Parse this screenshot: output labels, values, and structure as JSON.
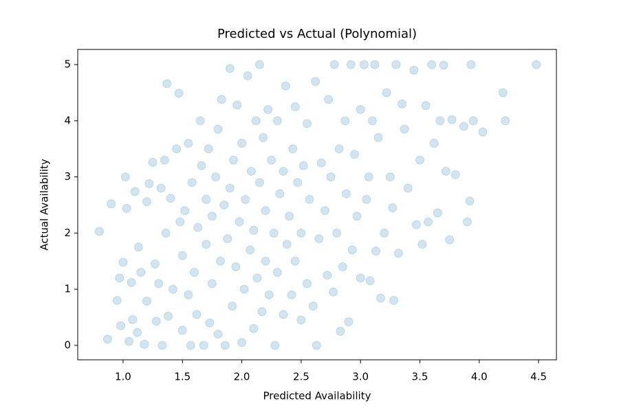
{
  "chart_data": {
    "type": "scatter",
    "title": "Predicted vs Actual (Polynomial)",
    "x_label": "Predicted Availability",
    "y_label": "Actual Availability",
    "color": "#1f77b4",
    "alpha": 0.2,
    "xlim": [
      0.618,
      4.65
    ],
    "ylim": [
      -0.257,
      5.27
    ],
    "xticks": [
      {
        "value": 1.0,
        "label": "1.0"
      },
      {
        "value": 1.5,
        "label": "1.5"
      },
      {
        "value": 2.0,
        "label": "2.0"
      },
      {
        "value": 2.5,
        "label": "2.5"
      },
      {
        "value": 3.0,
        "label": "3.0"
      },
      {
        "value": 3.5,
        "label": "3.5"
      },
      {
        "value": 4.0,
        "label": "4.0"
      },
      {
        "value": 4.5,
        "label": "4.5"
      }
    ],
    "yticks": [
      0,
      1,
      2,
      3,
      4,
      5
    ],
    "x": [
      0.8,
      0.87,
      0.9,
      0.95,
      0.97,
      0.98,
      1.0,
      1.02,
      1.03,
      1.05,
      1.07,
      1.08,
      1.1,
      1.12,
      1.13,
      1.15,
      1.18,
      1.2,
      1.2,
      1.22,
      1.25,
      1.27,
      1.28,
      1.3,
      1.32,
      1.33,
      1.35,
      1.36,
      1.37,
      1.38,
      1.4,
      1.42,
      1.45,
      1.47,
      1.48,
      1.5,
      1.5,
      1.52,
      1.55,
      1.55,
      1.57,
      1.58,
      1.6,
      1.62,
      1.63,
      1.65,
      1.66,
      1.68,
      1.7,
      1.7,
      1.72,
      1.73,
      1.75,
      1.75,
      1.78,
      1.8,
      1.8,
      1.82,
      1.83,
      1.85,
      1.86,
      1.88,
      1.9,
      1.9,
      1.92,
      1.93,
      1.95,
      1.96,
      1.98,
      2.0,
      2.0,
      2.02,
      2.03,
      2.05,
      2.07,
      2.08,
      2.1,
      2.1,
      2.12,
      2.13,
      2.15,
      2.15,
      2.17,
      2.18,
      2.2,
      2.2,
      2.22,
      2.23,
      2.25,
      2.27,
      2.28,
      2.3,
      2.3,
      2.32,
      2.35,
      2.35,
      2.37,
      2.38,
      2.4,
      2.42,
      2.43,
      2.45,
      2.45,
      2.47,
      2.5,
      2.5,
      2.52,
      2.55,
      2.55,
      2.57,
      2.6,
      2.62,
      2.63,
      2.65,
      2.67,
      2.7,
      2.72,
      2.73,
      2.75,
      2.77,
      2.78,
      2.8,
      2.82,
      2.83,
      2.85,
      2.87,
      2.88,
      2.9,
      2.92,
      2.93,
      2.95,
      2.97,
      3.0,
      3.0,
      3.03,
      3.05,
      3.07,
      3.08,
      3.1,
      3.12,
      3.13,
      3.15,
      3.17,
      3.2,
      3.22,
      3.25,
      3.27,
      3.28,
      3.3,
      3.32,
      3.35,
      3.37,
      3.4,
      3.45,
      3.47,
      3.5,
      3.52,
      3.55,
      3.57,
      3.6,
      3.62,
      3.65,
      3.67,
      3.7,
      3.72,
      3.75,
      3.77,
      3.8,
      3.87,
      3.9,
      3.92,
      3.93,
      3.95,
      4.03,
      4.2,
      4.22,
      4.48
    ],
    "values": [
      2.03,
      0.11,
      2.52,
      0.8,
      1.2,
      0.35,
      1.48,
      3.0,
      2.44,
      0.07,
      1.12,
      0.46,
      2.74,
      0.23,
      1.75,
      1.3,
      0.02,
      2.56,
      0.79,
      2.88,
      3.26,
      1.45,
      0.43,
      1.1,
      2.8,
      0.0,
      3.3,
      2.0,
      4.66,
      0.52,
      2.62,
      1.0,
      3.5,
      4.49,
      2.2,
      0.27,
      1.6,
      2.4,
      3.6,
      0.9,
      0.0,
      2.9,
      1.3,
      0.55,
      2.1,
      4.0,
      3.2,
      0.0,
      1.8,
      2.6,
      3.5,
      0.4,
      1.1,
      2.3,
      3.0,
      0.2,
      3.85,
      1.5,
      4.38,
      2.5,
      0.0,
      1.9,
      2.8,
      4.93,
      0.7,
      3.3,
      1.4,
      4.28,
      2.2,
      0.05,
      3.6,
      1.0,
      2.6,
      4.8,
      1.7,
      3.1,
      0.3,
      2.05,
      4.0,
      1.2,
      5.0,
      2.9,
      0.6,
      3.7,
      1.5,
      2.4,
      4.2,
      0.9,
      3.3,
      2.0,
      0.0,
      1.3,
      4.0,
      2.7,
      0.55,
      3.1,
      4.62,
      1.8,
      2.3,
      0.9,
      3.5,
      1.5,
      4.25,
      2.9,
      0.45,
      2.0,
      3.2,
      1.1,
      3.95,
      2.6,
      0.7,
      4.7,
      0.0,
      1.9,
      3.25,
      2.4,
      1.25,
      4.38,
      3.0,
      0.95,
      5.0,
      2.0,
      3.5,
      0.25,
      1.4,
      4.0,
      2.7,
      0.42,
      5.0,
      1.7,
      3.4,
      2.3,
      4.2,
      1.2,
      5.0,
      2.6,
      3.0,
      1.15,
      4.0,
      5.0,
      1.68,
      3.7,
      0.84,
      2.0,
      4.5,
      3.0,
      2.45,
      0.8,
      5.0,
      1.64,
      4.3,
      3.85,
      2.8,
      4.9,
      2.15,
      3.3,
      1.8,
      4.27,
      2.2,
      5.0,
      3.6,
      2.36,
      4.0,
      4.99,
      3.1,
      1.88,
      4.02,
      3.04,
      3.9,
      2.2,
      2.57,
      5.0,
      4.0,
      3.8,
      4.5,
      4.0,
      5.0
    ]
  }
}
